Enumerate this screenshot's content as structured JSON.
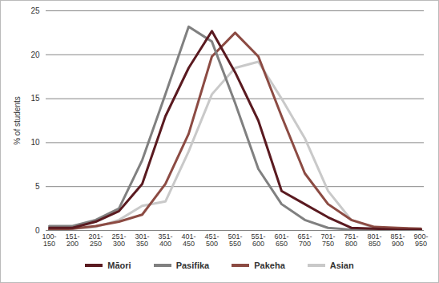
{
  "chart_data": {
    "type": "line",
    "y_label": "% of students",
    "categories": [
      "100-150",
      "151-200",
      "201-250",
      "251-300",
      "301-350",
      "351-400",
      "401-450",
      "451-500",
      "501-550",
      "551-600",
      "601-650",
      "651-700",
      "701-750",
      "751-800",
      "801-850",
      "851-900",
      "900-950"
    ],
    "series": [
      {
        "name": "Māori",
        "color": "#5a1a20",
        "values": [
          0.3,
          0.3,
          1,
          2.2,
          5.3,
          13,
          18.5,
          22.7,
          18,
          12.5,
          4.5,
          3,
          1.5,
          0.3,
          0.2,
          0.1,
          0.1
        ]
      },
      {
        "name": "Pasifika",
        "color": "#808080",
        "values": [
          0.5,
          0.5,
          1.2,
          2.5,
          8,
          15.5,
          23.2,
          21.5,
          14.5,
          7,
          3,
          1.2,
          0.3,
          0.1,
          0.1,
          0.1,
          0.1
        ]
      },
      {
        "name": "Pakeha",
        "color": "#8c4b43",
        "values": [
          0.1,
          0.2,
          0.5,
          1,
          1.8,
          5.3,
          11,
          19.8,
          22.5,
          19.8,
          13,
          6.5,
          3,
          1.2,
          0.4,
          0.3,
          0.2
        ]
      },
      {
        "name": "Asian",
        "color": "#c9c9c9",
        "values": [
          0.1,
          0.2,
          0.4,
          1.2,
          2.8,
          3.3,
          9,
          15.5,
          18.5,
          19.2,
          15,
          10.5,
          4.5,
          1.2,
          0.3,
          0.2,
          0.2
        ]
      }
    ],
    "ylim": [
      0,
      25
    ],
    "yticks": [
      0,
      5,
      10,
      15,
      20,
      25
    ],
    "grid": true,
    "legend": "bottom"
  }
}
